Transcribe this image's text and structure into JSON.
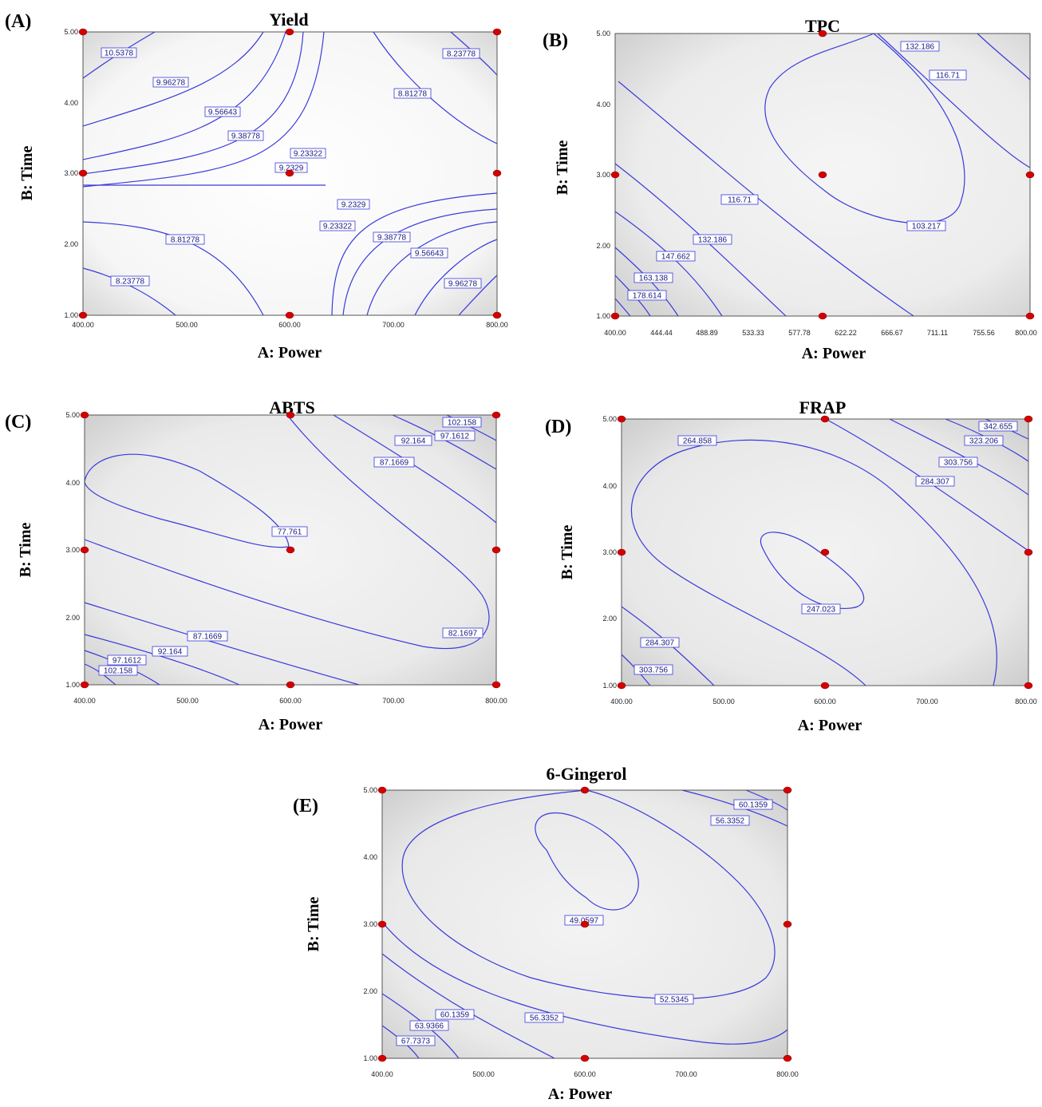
{
  "figure": {
    "panels": [
      {
        "id": "A",
        "letter": "(A)",
        "title": "Yield",
        "xlabel": "A: Power",
        "ylabel": "B: Time",
        "xticks": [
          "400.00",
          "500.00",
          "600.00",
          "700.00",
          "800.00"
        ],
        "yticks": [
          "1.00",
          "2.00",
          "3.00",
          "4.00",
          "5.00"
        ],
        "contour_labels": [
          "10.5378",
          "9.96278",
          "9.56643",
          "9.38778",
          "9.23322",
          "9.2329",
          "8.23778",
          "8.81278",
          "9.2329",
          "9.23322",
          "9.38778",
          "9.56643",
          "9.96278",
          "8.81278",
          "8.23778"
        ],
        "background": "#ffffff"
      },
      {
        "id": "B",
        "letter": "(B)",
        "title": "TPC",
        "xlabel": "A: Power",
        "ylabel": "B: Time",
        "xticks": [
          "400.00",
          "444.44",
          "488.89",
          "533.33",
          "577.78",
          "622.22",
          "666.67",
          "711.11",
          "755.56",
          "800.00"
        ],
        "yticks": [
          "1.00",
          "2.00",
          "3.00",
          "4.00",
          "5.00"
        ],
        "contour_labels": [
          "132.186",
          "116.71",
          "116.71",
          "103.217",
          "132.186",
          "147.662",
          "163.138",
          "178.614"
        ],
        "background": "#ececec"
      },
      {
        "id": "C",
        "letter": "(C)",
        "title": "ABTS",
        "xlabel": "A: Power",
        "ylabel": "B: Time",
        "xticks": [
          "400.00",
          "500.00",
          "600.00",
          "700.00",
          "800.00"
        ],
        "yticks": [
          "1.00",
          "2.00",
          "3.00",
          "4.00",
          "5.00"
        ],
        "contour_labels": [
          "102.158",
          "97.1612",
          "92.164",
          "87.1669",
          "77.761",
          "82.1697",
          "87.1669",
          "92.164",
          "97.1612",
          "102.158"
        ],
        "background": "#ececec"
      },
      {
        "id": "D",
        "letter": "(D)",
        "title": "FRAP",
        "xlabel": "A: Power",
        "ylabel": "B: Time",
        "xticks": [
          "400.00",
          "500.00",
          "600.00",
          "700.00",
          "800.00"
        ],
        "yticks": [
          "1.00",
          "2.00",
          "3.00",
          "4.00",
          "5.00"
        ],
        "contour_labels": [
          "264.858",
          "342.655",
          "323.206",
          "303.756",
          "284.307",
          "247.023",
          "284.307",
          "303.756"
        ],
        "background": "#ececec"
      },
      {
        "id": "E",
        "letter": "(E)",
        "title": "6-Gingerol",
        "xlabel": "A: Power",
        "ylabel": "B: Time",
        "xticks": [
          "400.00",
          "500.00",
          "600.00",
          "700.00",
          "800.00"
        ],
        "yticks": [
          "1.00",
          "2.00",
          "3.00",
          "4.00",
          "5.00"
        ],
        "contour_labels": [
          "60.1359",
          "56.3352",
          "49.0597",
          "52.5345",
          "60.1359",
          "63.9366",
          "67.7373",
          "56.3352"
        ],
        "background": "#ececec"
      }
    ]
  },
  "chart_data": [
    {
      "type": "contour",
      "panel": "A",
      "title": "Yield",
      "xlabel": "A: Power",
      "ylabel": "B: Time",
      "xlim": [
        400,
        800
      ],
      "ylim": [
        1,
        5
      ],
      "contour_levels": [
        8.23778,
        8.81278,
        9.2329,
        9.23322,
        9.38778,
        9.56643,
        9.96278,
        10.5378
      ],
      "design_points": [
        [
          400,
          1
        ],
        [
          400,
          3
        ],
        [
          400,
          5
        ],
        [
          600,
          1
        ],
        [
          600,
          3
        ],
        [
          600,
          5
        ],
        [
          800,
          1
        ],
        [
          800,
          3
        ],
        [
          800,
          5
        ]
      ],
      "grid": false
    },
    {
      "type": "contour",
      "panel": "B",
      "title": "TPC",
      "xlabel": "A: Power",
      "ylabel": "B: Time",
      "xlim": [
        400,
        800
      ],
      "ylim": [
        1,
        5
      ],
      "contour_levels": [
        103.217,
        116.71,
        132.186,
        147.662,
        163.138,
        178.614
      ],
      "design_points": [
        [
          400,
          1
        ],
        [
          400,
          3
        ],
        [
          600,
          1
        ],
        [
          600,
          3
        ],
        [
          600,
          5
        ],
        [
          800,
          1
        ],
        [
          800,
          3
        ]
      ],
      "grid": false
    },
    {
      "type": "contour",
      "panel": "C",
      "title": "ABTS",
      "xlabel": "A: Power",
      "ylabel": "B: Time",
      "xlim": [
        400,
        800
      ],
      "ylim": [
        1,
        5
      ],
      "contour_levels": [
        77.761,
        82.1697,
        87.1669,
        92.164,
        97.1612,
        102.158
      ],
      "design_points": [
        [
          400,
          1
        ],
        [
          400,
          3
        ],
        [
          400,
          5
        ],
        [
          600,
          1
        ],
        [
          600,
          3
        ],
        [
          600,
          5
        ],
        [
          800,
          1
        ],
        [
          800,
          3
        ],
        [
          800,
          5
        ]
      ],
      "grid": false
    },
    {
      "type": "contour",
      "panel": "D",
      "title": "FRAP",
      "xlabel": "A: Power",
      "ylabel": "B: Time",
      "xlim": [
        400,
        800
      ],
      "ylim": [
        1,
        5
      ],
      "contour_levels": [
        247.023,
        264.858,
        284.307,
        303.756,
        323.206,
        342.655
      ],
      "design_points": [
        [
          400,
          1
        ],
        [
          400,
          3
        ],
        [
          400,
          5
        ],
        [
          600,
          1
        ],
        [
          600,
          3
        ],
        [
          600,
          5
        ],
        [
          800,
          1
        ],
        [
          800,
          3
        ],
        [
          800,
          5
        ]
      ],
      "grid": false
    },
    {
      "type": "contour",
      "panel": "E",
      "title": "6-Gingerol",
      "xlabel": "A: Power",
      "ylabel": "B: Time",
      "xlim": [
        400,
        800
      ],
      "ylim": [
        1,
        5
      ],
      "contour_levels": [
        49.0597,
        52.5345,
        56.3352,
        60.1359,
        63.9366,
        67.7373
      ],
      "design_points": [
        [
          400,
          1
        ],
        [
          400,
          3
        ],
        [
          400,
          5
        ],
        [
          600,
          1
        ],
        [
          600,
          3
        ],
        [
          600,
          5
        ],
        [
          800,
          1
        ],
        [
          800,
          3
        ],
        [
          800,
          5
        ]
      ],
      "grid": false
    }
  ]
}
